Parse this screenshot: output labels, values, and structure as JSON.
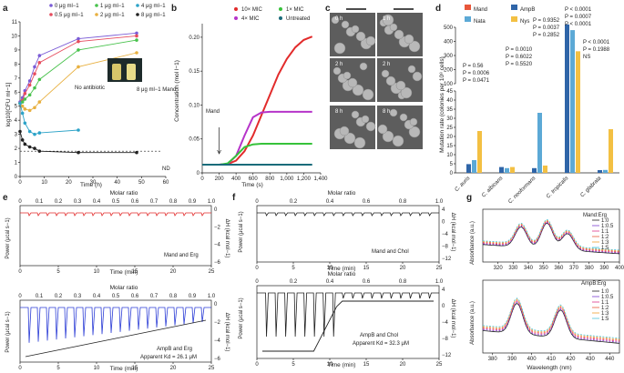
{
  "panels": {
    "a": "a",
    "b": "b",
    "c": "c",
    "d": "d",
    "e": "e",
    "f": "f",
    "g": "g"
  },
  "chart_data": [
    {
      "panel": "a",
      "type": "line",
      "xlabel": "Time (h)",
      "ylabel": "log10[CFU ml−1]",
      "xlim": [
        0,
        60
      ],
      "ylim": [
        0,
        11
      ],
      "xticks": [
        0,
        10,
        20,
        30,
        40,
        50,
        60
      ],
      "yticks": [
        0,
        1,
        2,
        3,
        4,
        5,
        6,
        7,
        8,
        9,
        10,
        11
      ],
      "x": [
        0,
        1,
        2,
        4,
        6,
        8,
        24,
        48
      ],
      "series": [
        {
          "name": "0 μg ml−1",
          "color": "#7b5cd6",
          "values": [
            5.3,
            5.6,
            6.1,
            6.8,
            7.8,
            8.6,
            9.8,
            10.2
          ]
        },
        {
          "name": "0.5 μg ml−1",
          "color": "#e64c5e",
          "values": [
            5.2,
            5.4,
            5.9,
            6.5,
            7.3,
            8.1,
            9.6,
            10.0
          ]
        },
        {
          "name": "1 μg ml−1",
          "color": "#48c24c",
          "values": [
            5.2,
            5.3,
            5.5,
            5.8,
            6.3,
            6.9,
            9.0,
            9.7
          ]
        },
        {
          "name": "2 μg ml−1",
          "color": "#e8b040",
          "values": [
            5.2,
            5.0,
            4.8,
            4.7,
            4.9,
            5.3,
            7.8,
            8.8
          ]
        },
        {
          "name": "4 μg ml−1",
          "color": "#2da3c8",
          "values": [
            5.2,
            4.5,
            3.8,
            3.2,
            3.0,
            3.1,
            3.3,
            null
          ]
        },
        {
          "name": "8 μg ml−1",
          "color": "#222222",
          "values": [
            3.2,
            2.6,
            2.3,
            2.1,
            2.0,
            1.8,
            1.7,
            1.7
          ]
        }
      ],
      "nd_line": 1.8,
      "nd_label": "ND",
      "inset_left": "No antibiotic",
      "inset_right": "8 μg ml−1 Mand"
    },
    {
      "panel": "b",
      "type": "line",
      "xlabel": "Time (s)",
      "ylabel": "Concentration (mol l−1)",
      "xlim": [
        0,
        1400
      ],
      "ylim": [
        0,
        0.22
      ],
      "xticks": [
        0,
        200,
        400,
        600,
        800,
        1000,
        1200,
        1400
      ],
      "xticklabels": [
        "0",
        "200",
        "400",
        "600",
        "800",
        "1,000",
        "1,200",
        "1,400"
      ],
      "yticks": [
        0,
        0.05,
        0.1,
        0.15,
        0.2
      ],
      "yticklabels": [
        "0",
        "0.05",
        "0.10",
        "0.15",
        "0.20"
      ],
      "x": [
        0,
        100,
        200,
        300,
        400,
        500,
        600,
        700,
        800,
        900,
        1000,
        1100,
        1200,
        1300
      ],
      "series": [
        {
          "name": "10× MIC",
          "color": "#e22b2b",
          "values": [
            0.012,
            0.012,
            0.012,
            0.013,
            0.018,
            0.032,
            0.055,
            0.085,
            0.115,
            0.145,
            0.168,
            0.185,
            0.196,
            0.201
          ]
        },
        {
          "name": "4× MIC",
          "color": "#b634c9",
          "values": [
            0.012,
            0.012,
            0.012,
            0.013,
            0.025,
            0.055,
            0.082,
            0.089,
            0.09,
            0.09,
            0.09,
            0.09,
            0.09,
            0.09
          ]
        },
        {
          "name": "1× MIC",
          "color": "#36c23a",
          "values": [
            0.012,
            0.012,
            0.012,
            0.014,
            0.025,
            0.038,
            0.042,
            0.043,
            0.043,
            0.043,
            0.043,
            0.043,
            0.043,
            0.043
          ]
        },
        {
          "name": "Untreated",
          "color": "#186b7a",
          "values": [
            0.012,
            0.012,
            0.012,
            0.012,
            0.012,
            0.012,
            0.012,
            0.012,
            0.012,
            0.012,
            0.012,
            0.012,
            0.012,
            0.012
          ]
        }
      ],
      "arrow_label": "Mand",
      "arrow_x": 200
    },
    {
      "panel": "d",
      "type": "bar",
      "ylabel": "Mutation rate (colonies per 10⁸ cells)",
      "yticks_lower": [
        0,
        5,
        10,
        15,
        20,
        25,
        30,
        35,
        40,
        45
      ],
      "yticks_upper": [
        100,
        200,
        300,
        400,
        500
      ],
      "categories": [
        "C. auris",
        "C. albicans",
        "C. neoformans",
        "C. tropicalis",
        "C. glabrata"
      ],
      "series": [
        {
          "name": "Mand",
          "color": "#e8563a",
          "values": [
            0,
            0,
            0,
            0,
            0
          ]
        },
        {
          "name": "AmpB",
          "color": "#2f65a8",
          "values": [
            4.8,
            3.2,
            2.6,
            520,
            1.5
          ]
        },
        {
          "name": "Nata",
          "color": "#5ca9d6",
          "values": [
            7.0,
            2.6,
            33.0,
            480,
            1.6
          ]
        },
        {
          "name": "Nys",
          "color": "#f3c043",
          "values": [
            23.0,
            3.2,
            4.0,
            330,
            24.0
          ]
        }
      ],
      "pvalues": {
        "C. auris": [
          "P = 0.56",
          "P = 0.0006",
          "P = 0.0471"
        ],
        "C. neoformans": [
          "P = 0.0010",
          "P = 0.6022",
          "P = 0.5520"
        ],
        "C. tropicalis": [
          "P = 0.9352",
          "P = 0.0037",
          "P = 0.2852"
        ],
        "top": [
          "P < 0.0001",
          "P = 0.0007",
          "P < 0.0001"
        ],
        "C. glabrata": [
          "P < 0.0001",
          "P = 0.1988",
          "NS"
        ]
      }
    },
    {
      "panel": "e",
      "type": "line",
      "top_axis_label": "Molar ratio",
      "top_ticks": [
        "0",
        "0.1",
        "0.2",
        "0.3",
        "0.4",
        "0.5",
        "0.6",
        "0.7",
        "0.8",
        "0.9",
        "1.0"
      ],
      "xlabel": "Time (min)",
      "xticks": [
        0,
        5,
        10,
        15,
        20,
        25
      ],
      "ylabel_left": "Power (μcal s−1)",
      "ylabel_right": "ΔH (kcal mol−1)",
      "upper": {
        "label": "Mand and Erg",
        "color": "#e22b2b",
        "right_ticks": [
          "0",
          "−2",
          "−4",
          "−6"
        ]
      },
      "lower": {
        "label": "AmpB and Erg",
        "kd_text": "Apparent Kd = 26.1 μM",
        "color": "#2d3ed6",
        "right_ticks": [
          "0",
          "−2",
          "−4",
          "−6"
        ]
      }
    },
    {
      "panel": "f",
      "type": "line",
      "top_axis_label": "Molar ratio",
      "top_ticks": [
        "0",
        "0.2",
        "0.4",
        "0.6",
        "0.8",
        "1.0"
      ],
      "xlabel": "Time (min)",
      "xticks": [
        0,
        5,
        10,
        15,
        20,
        25
      ],
      "ylabel_left": "Power (μcal s−1)",
      "ylabel_right": "ΔH (kcal mol−1)",
      "upper": {
        "label": "Mand and Chol",
        "color": "#222222",
        "right_ticks": [
          "4",
          "0",
          "−4",
          "−8",
          "−12"
        ]
      },
      "lower": {
        "label": "AmpB and Chol",
        "kd_text": "Apparent Kd = 32.3 μM",
        "color": "#222222",
        "right_ticks": [
          "4",
          "0",
          "−4",
          "−8",
          "−12"
        ]
      }
    },
    {
      "panel": "g",
      "type": "line",
      "xlabel": "Wavelength (nm)",
      "ylabel": "Absorbance (a.u.)",
      "upper": {
        "title": "Mand:Erg",
        "xlim": [
          310,
          400
        ],
        "xticks": [
          320,
          330,
          340,
          350,
          360,
          370,
          380,
          390,
          400
        ],
        "series": [
          {
            "name": "1:0",
            "color": "#222222"
          },
          {
            "name": "1:0.5",
            "color": "#7b3fd0"
          },
          {
            "name": "1:1",
            "color": "#e0348a"
          },
          {
            "name": "1:2",
            "color": "#e85a3a"
          },
          {
            "name": "1:3",
            "color": "#f0a030"
          },
          {
            "name": "1:5",
            "color": "#4cc3d9"
          }
        ]
      },
      "lower": {
        "title": "AmpB:Erg",
        "xlim": [
          375,
          445
        ],
        "xticks": [
          380,
          390,
          400,
          410,
          420,
          430,
          440
        ],
        "series": [
          {
            "name": "1:0",
            "color": "#222222"
          },
          {
            "name": "1:0.5",
            "color": "#7b3fd0"
          },
          {
            "name": "1:1",
            "color": "#e0348a"
          },
          {
            "name": "1:2",
            "color": "#e85a3a"
          },
          {
            "name": "1:3",
            "color": "#f0a030"
          },
          {
            "name": "1:5",
            "color": "#4cc3d9"
          }
        ]
      }
    }
  ],
  "micrographs": [
    "0 h",
    "1 h",
    "2 h",
    "2 h",
    "8 h",
    "8 h"
  ]
}
